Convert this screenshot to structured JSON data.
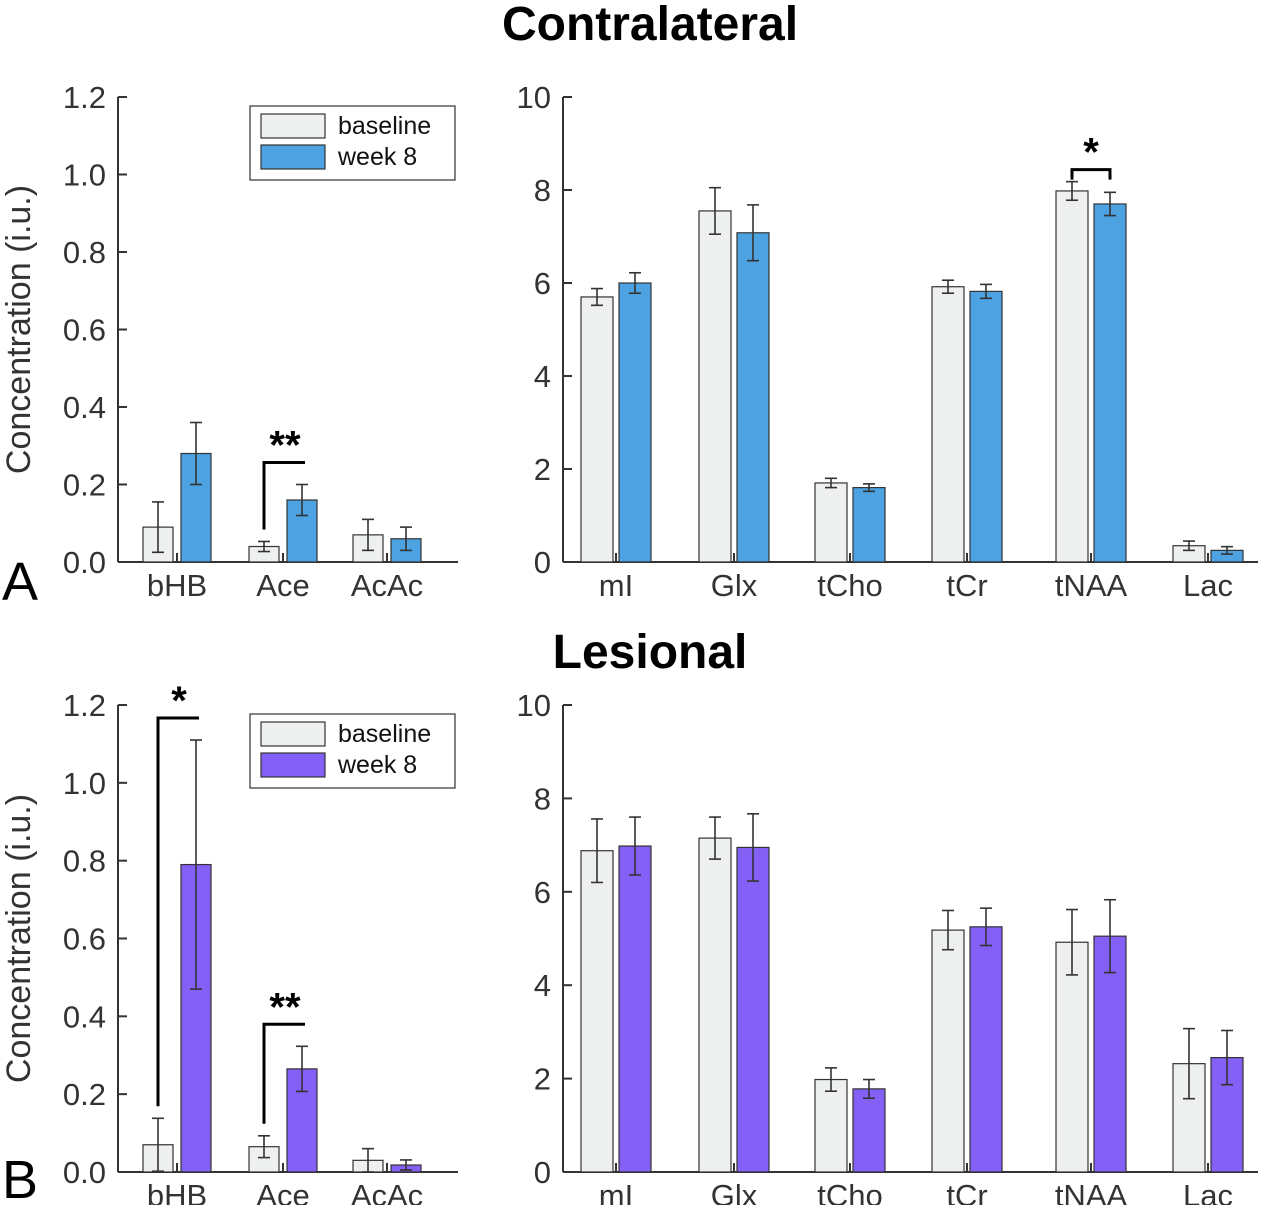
{
  "titles": [
    "Contralateral",
    "Lesional"
  ],
  "panel_letters": [
    "A",
    "B"
  ],
  "chart_data": [
    {
      "id": "A-ketones",
      "type": "bar",
      "ylabel": "Concentration (i.u.)",
      "ylim": [
        0,
        1.2
      ],
      "yticks": [
        "0.0",
        "0.2",
        "0.4",
        "0.6",
        "0.8",
        "1.0",
        "1.2"
      ],
      "categories": [
        "bHB",
        "Ace",
        "AcAc"
      ],
      "legend": {
        "placement": "top-right"
      },
      "series": [
        {
          "name": "baseline",
          "color": "#eef0ef",
          "values": [
            0.09,
            0.04,
            0.07
          ],
          "errors": [
            0.065,
            0.013,
            0.04
          ]
        },
        {
          "name": "week 8",
          "color": "#4da2e1",
          "values": [
            0.28,
            0.16,
            0.06
          ],
          "errors": [
            0.08,
            0.04,
            0.03
          ]
        }
      ],
      "significance": [
        {
          "category": "Ace",
          "label": "**",
          "style": "L"
        }
      ]
    },
    {
      "id": "A-metabolites",
      "type": "bar",
      "ylim": [
        0,
        10
      ],
      "yticks": [
        "0",
        "2",
        "4",
        "6",
        "8",
        "10"
      ],
      "categories": [
        "mI",
        "Glx",
        "tCho",
        "tCr",
        "tNAA",
        "Lac"
      ],
      "series": [
        {
          "color": "#eef0ef",
          "values": [
            5.7,
            7.55,
            1.7,
            5.92,
            7.98,
            0.35
          ],
          "errors": [
            0.18,
            0.5,
            0.1,
            0.14,
            0.2,
            0.1
          ]
        },
        {
          "color": "#4da2e1",
          "values": [
            6.0,
            7.08,
            1.6,
            5.82,
            7.7,
            0.25
          ],
          "errors": [
            0.22,
            0.6,
            0.08,
            0.15,
            0.25,
            0.08
          ]
        }
      ],
      "significance": [
        {
          "category": "tNAA",
          "label": "*",
          "style": "bracket"
        }
      ]
    },
    {
      "id": "B-ketones",
      "type": "bar",
      "ylabel": "Concentration (i.u.)",
      "ylim": [
        0,
        1.2
      ],
      "yticks": [
        "0.0",
        "0.2",
        "0.4",
        "0.6",
        "0.8",
        "1.0",
        "1.2"
      ],
      "categories": [
        "bHB",
        "Ace",
        "AcAc"
      ],
      "legend": {
        "placement": "top-right"
      },
      "series": [
        {
          "name": "baseline",
          "color": "#eef0ef",
          "values": [
            0.07,
            0.065,
            0.03
          ],
          "errors": [
            0.068,
            0.028,
            0.03
          ]
        },
        {
          "name": "week 8",
          "color": "#8560f6",
          "values": [
            0.79,
            0.265,
            0.018
          ],
          "errors": [
            0.32,
            0.058,
            0.013
          ]
        }
      ],
      "significance": [
        {
          "category": "bHB",
          "label": "*",
          "style": "L"
        },
        {
          "category": "Ace",
          "label": "**",
          "style": "L"
        }
      ]
    },
    {
      "id": "B-metabolites",
      "type": "bar",
      "ylim": [
        0,
        10
      ],
      "yticks": [
        "0",
        "2",
        "4",
        "6",
        "8",
        "10"
      ],
      "categories": [
        "mI",
        "Glx",
        "tCho",
        "tCr",
        "tNAA",
        "Lac"
      ],
      "series": [
        {
          "color": "#eef0ef",
          "values": [
            6.88,
            7.15,
            1.98,
            5.18,
            4.92,
            2.32
          ],
          "errors": [
            0.68,
            0.45,
            0.25,
            0.42,
            0.7,
            0.75
          ]
        },
        {
          "color": "#8560f6",
          "values": [
            6.98,
            6.95,
            1.78,
            5.25,
            5.05,
            2.45
          ],
          "errors": [
            0.62,
            0.72,
            0.2,
            0.4,
            0.78,
            0.58
          ]
        }
      ],
      "significance": []
    }
  ]
}
